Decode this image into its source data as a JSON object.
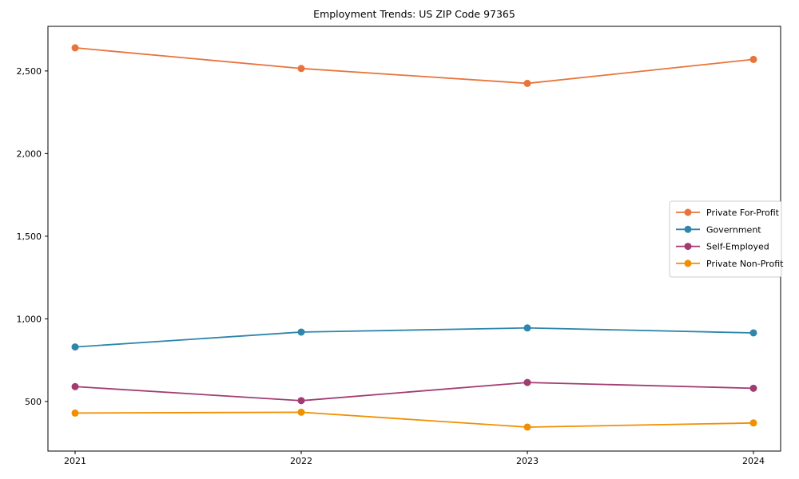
{
  "chart_data": {
    "type": "line",
    "title": "Employment Trends: US ZIP Code 97365",
    "xlabel": "",
    "ylabel": "",
    "categories": [
      "2021",
      "2022",
      "2023",
      "2024"
    ],
    "series": [
      {
        "name": "Private For-Profit",
        "color": "#E8743B",
        "values": [
          2640,
          2515,
          2425,
          2570
        ]
      },
      {
        "name": "Government",
        "color": "#2E86AB",
        "values": [
          830,
          920,
          945,
          915
        ]
      },
      {
        "name": "Self-Employed",
        "color": "#A23B72",
        "values": [
          590,
          505,
          615,
          580
        ]
      },
      {
        "name": "Private Non-Profit",
        "color": "#F18F01",
        "values": [
          430,
          435,
          345,
          370
        ]
      }
    ],
    "yticks": [
      500,
      1000,
      1500,
      2000,
      2500
    ],
    "ytick_labels": [
      "500",
      "1,000",
      "1,500",
      "2,000",
      "2,500"
    ],
    "ylim": [
      200,
      2770
    ],
    "grid": false,
    "legend_position": "center right",
    "marker": "circle",
    "axis_color": "#000000",
    "legend_border_color": "#cccccc",
    "background_color": "#ffffff"
  }
}
